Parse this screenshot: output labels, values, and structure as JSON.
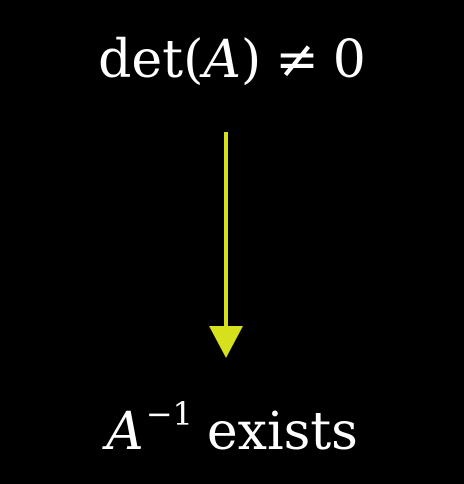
{
  "top_expression": {
    "func": "det",
    "open_paren": "(",
    "variable": "A",
    "close_paren": ")",
    "relation": "≠",
    "value": "0"
  },
  "bottom_expression": {
    "variable": "A",
    "exponent": "−1",
    "word": "exists"
  },
  "colors": {
    "background": "#000000",
    "text": "#ffffff",
    "arrow": "#d6e01c"
  }
}
